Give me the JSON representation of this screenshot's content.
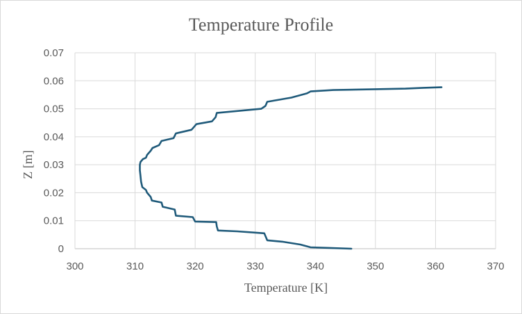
{
  "chart_data": {
    "type": "line",
    "title": "Temperature Profile",
    "xlabel": "Temperature [K]",
    "ylabel": "Z [m]",
    "xlim": [
      300,
      370
    ],
    "ylim": [
      0,
      0.07
    ],
    "xticks": [
      "300",
      "310",
      "320",
      "330",
      "340",
      "350",
      "360",
      "370"
    ],
    "yticks": [
      "0",
      "0.01",
      "0.02",
      "0.03",
      "0.04",
      "0.05",
      "0.06",
      "0.07"
    ],
    "grid": true,
    "legend": "none",
    "line_color": "#1f5a7a",
    "series": [
      {
        "x": [
          346.0,
          342.0,
          339.2,
          337.5,
          334.5,
          332.0,
          331.8,
          331.5,
          327.0,
          323.8,
          323.6,
          323.5,
          320.0,
          319.8,
          319.6,
          316.8,
          316.6,
          314.6,
          314.4,
          312.8,
          312.6,
          312.0,
          311.8,
          311.2,
          311.0,
          310.9,
          310.8,
          310.8,
          310.9,
          311.3,
          311.8,
          312.0,
          312.6,
          312.9,
          314.0,
          314.4,
          316.4,
          316.8,
          319.4,
          319.8,
          320.2,
          322.8,
          323.4,
          323.6,
          331.0,
          331.7,
          332.0,
          336.0,
          338.6,
          339.2,
          343.0,
          350.0,
          355.0,
          358.0,
          361.0
        ],
        "y": [
          0.0,
          0.0003,
          0.0005,
          0.0015,
          0.0025,
          0.003,
          0.004,
          0.0055,
          0.0062,
          0.0065,
          0.008,
          0.0095,
          0.0097,
          0.0105,
          0.0113,
          0.0118,
          0.014,
          0.015,
          0.0165,
          0.0172,
          0.0185,
          0.02,
          0.021,
          0.022,
          0.024,
          0.026,
          0.028,
          0.03,
          0.031,
          0.032,
          0.0325,
          0.0335,
          0.035,
          0.036,
          0.037,
          0.0385,
          0.0395,
          0.0412,
          0.0425,
          0.0435,
          0.0445,
          0.0455,
          0.047,
          0.0485,
          0.05,
          0.051,
          0.0525,
          0.054,
          0.0555,
          0.0562,
          0.0567,
          0.057,
          0.0572,
          0.0575,
          0.0577
        ]
      }
    ]
  }
}
